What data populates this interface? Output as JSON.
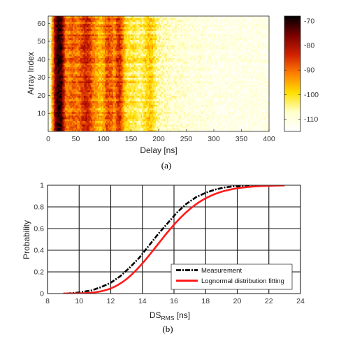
{
  "chart_data": [
    {
      "id": "a",
      "type": "heatmap",
      "caption": "(a)",
      "xlabel": "Delay [ns]",
      "ylabel": "Array Index",
      "xlim": [
        0,
        400
      ],
      "ylim": [
        0,
        64
      ],
      "xticks": [
        "0",
        "50",
        "100",
        "150",
        "200",
        "250",
        "300",
        "350",
        "400"
      ],
      "yticks": [
        "10",
        "20",
        "30",
        "40",
        "50",
        "60"
      ],
      "colorbar": {
        "range": [
          -115,
          -68
        ],
        "ticks": [
          "-70",
          "-80",
          "-90",
          "-100",
          "-110"
        ],
        "tick_values": [
          -70,
          -80,
          -90,
          -100,
          -110
        ],
        "colormap": "hot",
        "colors": [
          "#000000",
          "#7a0000",
          "#d02000",
          "#ff8000",
          "#ffe000",
          "#ffffcc",
          "#ffffff"
        ]
      },
      "delay_profile": {
        "delay_ns": [
          0,
          5,
          10,
          15,
          20,
          25,
          30,
          35,
          40,
          45,
          50,
          55,
          60,
          65,
          70,
          75,
          80,
          85,
          90,
          95,
          100,
          105,
          110,
          115,
          120,
          125,
          130,
          135,
          140,
          145,
          150,
          155,
          160,
          165,
          170,
          175,
          180,
          185,
          190,
          195,
          200,
          220,
          240,
          260,
          280,
          300,
          350,
          400
        ],
        "power_db": [
          -112,
          -104,
          -86,
          -72,
          -70,
          -73,
          -88,
          -92,
          -90,
          -89,
          -90,
          -91,
          -87,
          -84,
          -83,
          -85,
          -90,
          -93,
          -95,
          -97,
          -94,
          -89,
          -87,
          -89,
          -94,
          -86,
          -84,
          -92,
          -99,
          -101,
          -102,
          -101,
          -103,
          -104,
          -103,
          -101,
          -99,
          -97,
          -100,
          -104,
          -106,
          -108,
          -109,
          -110,
          -110,
          -111,
          -111,
          -111
        ]
      }
    },
    {
      "id": "b",
      "type": "line",
      "caption": "(b)",
      "xlabel": "DS",
      "xlabel_sub": "RMS",
      "xlabel_unit": " [ns]",
      "ylabel": "Probability",
      "xlim": [
        8,
        24
      ],
      "ylim": [
        0,
        1
      ],
      "xticks": [
        "8",
        "10",
        "12",
        "14",
        "16",
        "18",
        "20",
        "22",
        "24"
      ],
      "yticks": [
        "0",
        "0.2",
        "0.4",
        "0.6",
        "0.8",
        "1"
      ],
      "grid": true,
      "legend_position": "bottom-right",
      "series": [
        {
          "name": "Measurement",
          "style": "dashdot",
          "color": "#000000",
          "x": [
            9.2,
            10.0,
            10.8,
            11.4,
            12.0,
            12.6,
            13.2,
            13.8,
            14.4,
            15.0,
            15.6,
            16.2,
            16.8,
            17.4,
            18.0,
            18.6,
            19.2,
            19.8,
            20.6,
            21.4,
            22.2
          ],
          "y": [
            0.0,
            0.01,
            0.03,
            0.06,
            0.1,
            0.16,
            0.24,
            0.33,
            0.44,
            0.55,
            0.65,
            0.75,
            0.83,
            0.89,
            0.93,
            0.96,
            0.98,
            0.99,
            0.995,
            1.0,
            1.0
          ]
        },
        {
          "name": "Lognormal distribution fitting",
          "style": "solid",
          "color": "#ff1a1a",
          "lognormal": {
            "mu": 2.723,
            "sigma": 0.143
          },
          "x_range": [
            9.0,
            23.0
          ]
        }
      ]
    }
  ]
}
